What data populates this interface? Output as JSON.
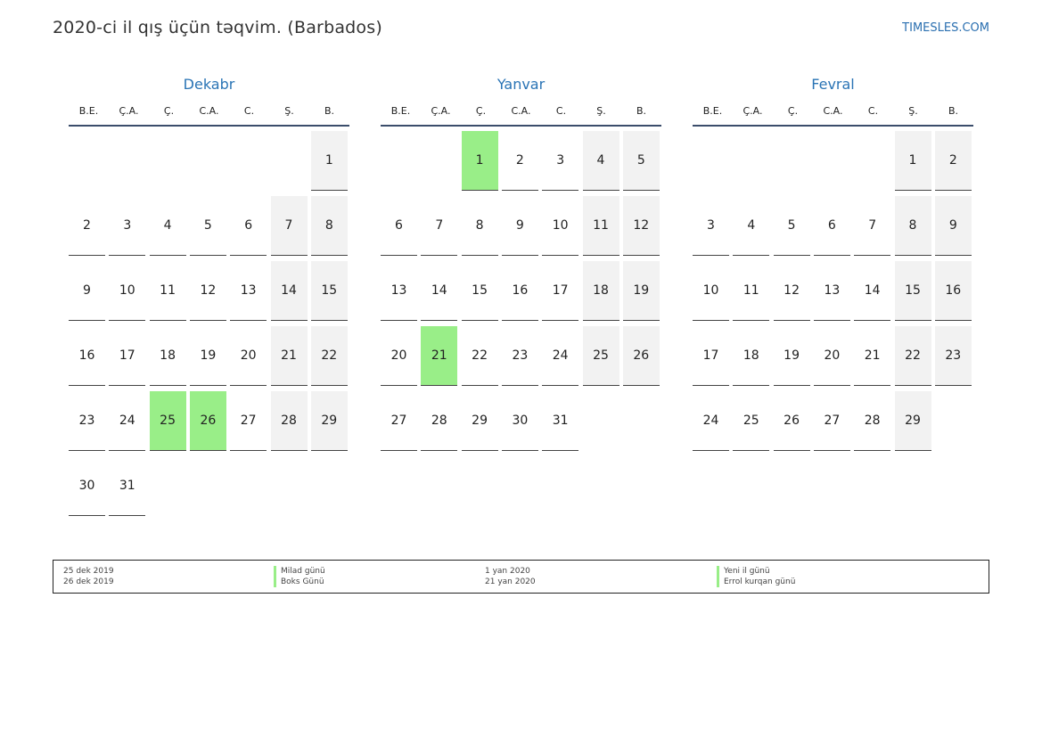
{
  "header": {
    "title": "2020-ci il qış üçün təqvim. (Barbados)",
    "site": "TIMESLES.COM"
  },
  "weekdays": [
    "B.E.",
    "Ç.A.",
    "Ç.",
    "C.A.",
    "C.",
    "Ş.",
    "B."
  ],
  "colors": {
    "holiday": "#99ee88",
    "weekend": "#f2f2f2",
    "accent": "#2a74b5"
  },
  "months": [
    {
      "name": "Dekabr",
      "first_weekday_index": 6,
      "days": 31,
      "holidays": [
        25,
        26
      ]
    },
    {
      "name": "Yanvar",
      "first_weekday_index": 2,
      "days": 31,
      "holidays": [
        1,
        21
      ]
    },
    {
      "name": "Fevral",
      "first_weekday_index": 5,
      "days": 29,
      "holidays": []
    }
  ],
  "legend": [
    {
      "date": "25 dek 2019",
      "name": "Milad günü"
    },
    {
      "date": "26 dek 2019",
      "name": "Boks Günü"
    },
    {
      "date": "1 yan 2020",
      "name": "Yeni il günü"
    },
    {
      "date": "21 yan 2020",
      "name": "Errol kurqan günü"
    }
  ]
}
